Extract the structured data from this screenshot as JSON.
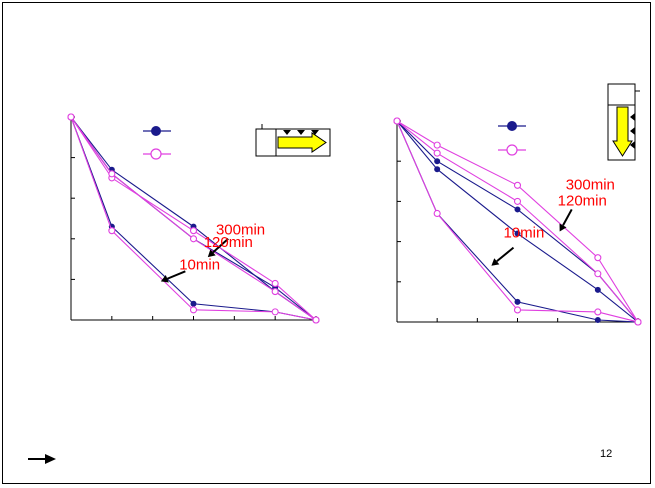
{
  "slide": {
    "page_number": "12"
  },
  "chart_data": [
    {
      "type": "line",
      "title": "",
      "xlabel": "",
      "ylabel": "",
      "grid": false,
      "x_ticks": 6,
      "y_ticks": 5,
      "xlim": [
        0,
        6
      ],
      "ylim": [
        0,
        5
      ],
      "series": [
        {
          "color": "#1a1a8c",
          "marker": "filled",
          "x": [
            0,
            1,
            3,
            5,
            6
          ],
          "y": [
            5,
            3.7,
            2.3,
            0.7,
            0
          ]
        },
        {
          "color": "#1a1a8c",
          "marker": "filled",
          "x": [
            0,
            1,
            3,
            5,
            6
          ],
          "y": [
            5,
            3.6,
            2.0,
            0.8,
            0
          ]
        },
        {
          "color": "#1a1a8c",
          "marker": "filled",
          "x": [
            0,
            1,
            3,
            5,
            6
          ],
          "y": [
            5,
            2.3,
            0.4,
            0.2,
            0
          ]
        },
        {
          "color": "#e040e0",
          "marker": "open",
          "x": [
            0,
            1,
            3,
            5,
            6
          ],
          "y": [
            5,
            3.5,
            2.2,
            0.9,
            0
          ]
        },
        {
          "color": "#e040e0",
          "marker": "open",
          "x": [
            0,
            1,
            3,
            5,
            6
          ],
          "y": [
            5,
            3.6,
            2.0,
            0.7,
            0
          ]
        },
        {
          "color": "#e040e0",
          "marker": "open",
          "x": [
            0,
            1,
            3,
            5,
            6
          ],
          "y": [
            5,
            2.2,
            0.25,
            0.2,
            0
          ]
        }
      ],
      "annotations": [
        {
          "text": "300min",
          "x": 3.55,
          "y": 2.1,
          "arrow_from": [
            3.85,
            2.0
          ],
          "arrow_to": [
            3.35,
            1.55
          ]
        },
        {
          "text": "120min",
          "x": 3.25,
          "y": 1.8
        },
        {
          "text": "10min",
          "x": 2.65,
          "y": 1.25,
          "arrow_from": [
            2.8,
            1.2
          ],
          "arrow_to": [
            2.2,
            0.95
          ]
        }
      ]
    },
    {
      "type": "line",
      "title": "",
      "xlabel": "",
      "ylabel": "",
      "grid": false,
      "x_ticks": 6,
      "y_ticks": 5,
      "xlim": [
        0,
        6
      ],
      "ylim": [
        0,
        5
      ],
      "series": [
        {
          "color": "#1a1a8c",
          "marker": "filled",
          "x": [
            0,
            1,
            3,
            5,
            6
          ],
          "y": [
            5,
            4.0,
            2.8,
            1.2,
            0
          ]
        },
        {
          "color": "#1a1a8c",
          "marker": "filled",
          "x": [
            0,
            1,
            3,
            5,
            6
          ],
          "y": [
            5,
            3.8,
            2.2,
            0.8,
            0
          ]
        },
        {
          "color": "#1a1a8c",
          "marker": "filled",
          "x": [
            0,
            1,
            3,
            5,
            6
          ],
          "y": [
            5,
            2.7,
            0.5,
            0.05,
            0
          ]
        },
        {
          "color": "#e040e0",
          "marker": "open",
          "x": [
            0,
            1,
            3,
            5,
            6
          ],
          "y": [
            5,
            4.4,
            3.4,
            1.6,
            0
          ]
        },
        {
          "color": "#e040e0",
          "marker": "open",
          "x": [
            0,
            1,
            3,
            5,
            6
          ],
          "y": [
            5,
            4.2,
            3.0,
            1.2,
            0
          ]
        },
        {
          "color": "#e040e0",
          "marker": "open",
          "x": [
            0,
            1,
            3,
            5,
            6
          ],
          "y": [
            5,
            2.7,
            0.3,
            0.25,
            0
          ]
        }
      ],
      "annotations": [
        {
          "text": "300min",
          "x": 4.2,
          "y": 3.3
        },
        {
          "text": "120min",
          "x": 4.0,
          "y": 2.9,
          "arrow_from": [
            4.35,
            2.8
          ],
          "arrow_to": [
            4.05,
            2.25
          ]
        },
        {
          "text": "10min",
          "x": 2.65,
          "y": 2.1,
          "arrow_from": [
            2.9,
            1.85
          ],
          "arrow_to": [
            2.35,
            1.4
          ]
        }
      ]
    }
  ],
  "colors": {
    "annotation": "#ff0000",
    "axis": "#000000",
    "arrow_fill": "#ffff00"
  },
  "icons": {
    "footer": "right-arrow-icon",
    "left_diagram": "horizontal-flow-box-icon",
    "right_diagram": "vertical-flow-box-icon"
  }
}
